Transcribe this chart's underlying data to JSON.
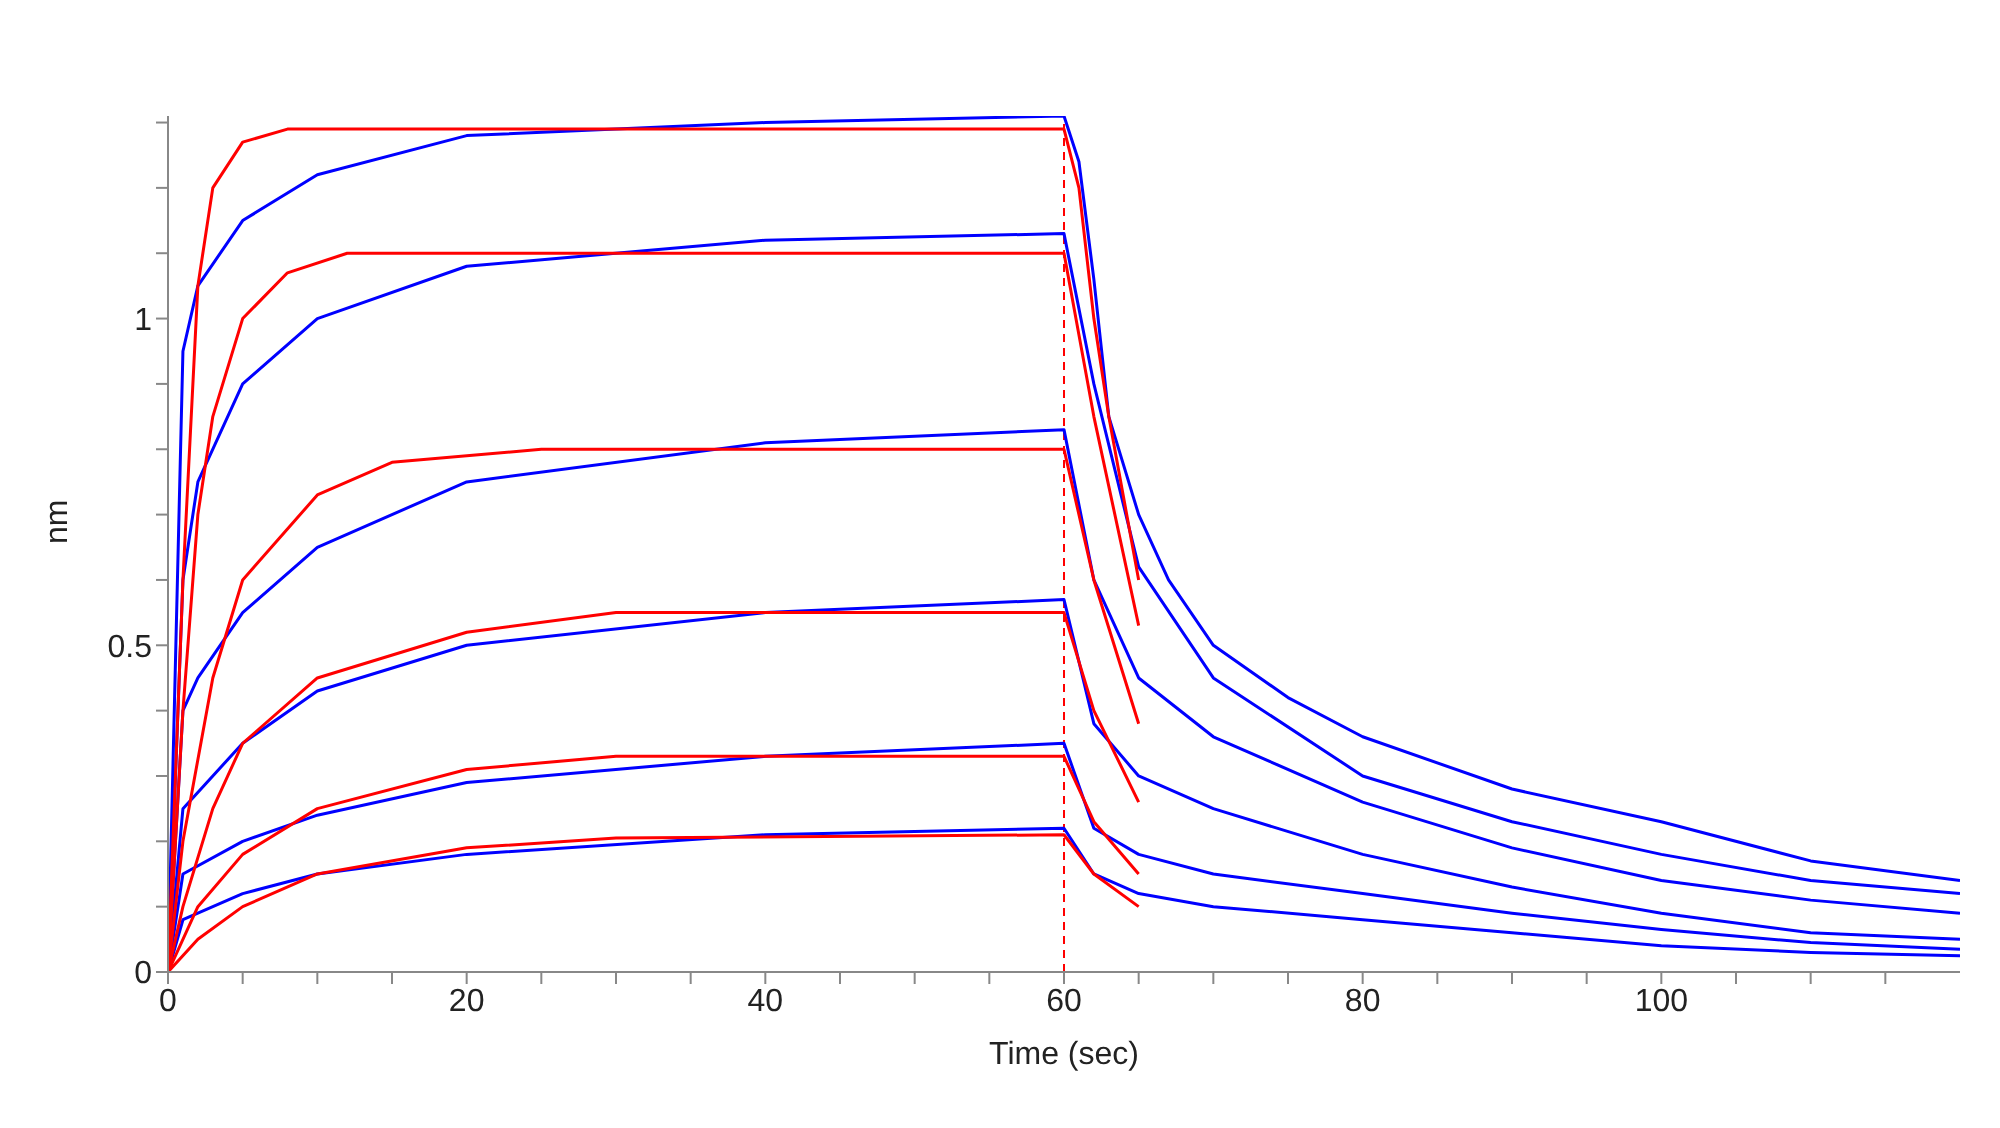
{
  "chart_data": {
    "type": "line",
    "xlabel": "Time (sec)",
    "ylabel": "nm",
    "xlim": [
      0,
      120
    ],
    "ylim": [
      0,
      1.31
    ],
    "xticks": [
      0,
      {
        "value": 5,
        "label": null
      },
      {
        "value": 10,
        "label": null
      },
      {
        "value": 15,
        "label": null
      },
      20,
      {
        "value": 25,
        "label": null
      },
      {
        "value": 30,
        "label": null
      },
      {
        "value": 35,
        "label": null
      },
      40,
      {
        "value": 45,
        "label": null
      },
      {
        "value": 50,
        "label": null
      },
      {
        "value": 55,
        "label": null
      },
      60,
      {
        "value": 65,
        "label": null
      },
      {
        "value": 70,
        "label": null
      },
      {
        "value": 75,
        "label": null
      },
      80,
      {
        "value": 85,
        "label": null
      },
      {
        "value": 90,
        "label": null
      },
      {
        "value": 95,
        "label": null
      },
      100,
      {
        "value": 105,
        "label": null
      },
      {
        "value": 110,
        "label": null
      },
      {
        "value": 115,
        "label": null
      }
    ],
    "yticks": [
      0,
      {
        "value": 0.1,
        "label": null
      },
      {
        "value": 0.2,
        "label": null
      },
      {
        "value": 0.3,
        "label": null
      },
      {
        "value": 0.4,
        "label": null
      },
      0.5,
      {
        "value": 0.6,
        "label": null
      },
      {
        "value": 0.7,
        "label": null
      },
      {
        "value": 0.8,
        "label": null
      },
      {
        "value": 0.9,
        "label": null
      },
      1,
      {
        "value": 1.1,
        "label": null
      },
      {
        "value": 1.2,
        "label": null
      },
      {
        "value": 1.3,
        "label": null
      }
    ],
    "grid": false,
    "legend": false,
    "marker": "none",
    "line_style": "solid",
    "ref_lines": [
      {
        "axis": "x",
        "value": 60,
        "color": "#ff0000",
        "line_style": "dashed"
      }
    ],
    "series": [
      {
        "color": "#0000ff",
        "x": [
          0,
          1,
          2,
          5,
          10,
          20,
          40,
          60,
          61,
          62,
          63,
          65,
          67,
          70,
          75,
          80,
          90,
          100,
          110,
          120
        ],
        "values": [
          0,
          0.95,
          1.05,
          1.15,
          1.22,
          1.28,
          1.3,
          1.31,
          1.24,
          1.06,
          0.85,
          0.7,
          0.6,
          0.5,
          0.42,
          0.36,
          0.28,
          0.23,
          0.17,
          0.14
        ]
      },
      {
        "color": "#0000ff",
        "x": [
          0,
          1,
          2,
          5,
          10,
          20,
          40,
          60,
          62,
          65,
          70,
          80,
          90,
          100,
          110,
          120
        ],
        "values": [
          0,
          0.6,
          0.75,
          0.9,
          1.0,
          1.08,
          1.12,
          1.13,
          0.9,
          0.62,
          0.45,
          0.3,
          0.23,
          0.18,
          0.14,
          0.12
        ]
      },
      {
        "color": "#0000ff",
        "x": [
          0,
          1,
          2,
          5,
          10,
          20,
          40,
          60,
          62,
          65,
          70,
          80,
          90,
          100,
          110,
          120
        ],
        "values": [
          0,
          0.4,
          0.45,
          0.55,
          0.65,
          0.75,
          0.81,
          0.83,
          0.6,
          0.45,
          0.36,
          0.26,
          0.19,
          0.14,
          0.11,
          0.09
        ]
      },
      {
        "color": "#0000ff",
        "x": [
          0,
          1,
          3,
          5,
          10,
          20,
          40,
          60,
          62,
          65,
          70,
          80,
          90,
          100,
          110,
          120
        ],
        "values": [
          0,
          0.25,
          0.3,
          0.35,
          0.43,
          0.5,
          0.55,
          0.57,
          0.38,
          0.3,
          0.25,
          0.18,
          0.13,
          0.09,
          0.06,
          0.05
        ]
      },
      {
        "color": "#0000ff",
        "x": [
          0,
          1,
          5,
          10,
          20,
          40,
          60,
          62,
          65,
          70,
          80,
          90,
          100,
          110,
          120
        ],
        "values": [
          0,
          0.15,
          0.2,
          0.24,
          0.29,
          0.33,
          0.35,
          0.22,
          0.18,
          0.15,
          0.12,
          0.09,
          0.065,
          0.045,
          0.035
        ]
      },
      {
        "color": "#0000ff",
        "x": [
          0,
          1,
          5,
          10,
          20,
          40,
          60,
          62,
          65,
          70,
          80,
          90,
          100,
          110,
          120
        ],
        "values": [
          0,
          0.08,
          0.12,
          0.15,
          0.18,
          0.21,
          0.22,
          0.15,
          0.12,
          0.1,
          0.08,
          0.06,
          0.04,
          0.03,
          0.025
        ]
      },
      {
        "color": "#ff0000",
        "x": [
          0,
          1,
          2,
          3,
          5,
          8,
          60,
          61,
          62,
          63,
          65
        ],
        "values": [
          0,
          0.6,
          1.05,
          1.2,
          1.27,
          1.29,
          1.29,
          1.2,
          1.0,
          0.85,
          0.6
        ]
      },
      {
        "color": "#ff0000",
        "x": [
          0,
          1,
          2,
          3,
          5,
          8,
          12,
          60,
          62,
          65
        ],
        "values": [
          0,
          0.4,
          0.7,
          0.85,
          1.0,
          1.07,
          1.1,
          1.1,
          0.85,
          0.53
        ]
      },
      {
        "color": "#ff0000",
        "x": [
          0,
          1,
          3,
          5,
          10,
          15,
          25,
          60,
          62,
          65
        ],
        "values": [
          0,
          0.2,
          0.45,
          0.6,
          0.73,
          0.78,
          0.8,
          0.8,
          0.6,
          0.38
        ]
      },
      {
        "color": "#ff0000",
        "x": [
          0,
          1,
          3,
          5,
          10,
          20,
          30,
          60,
          62,
          65
        ],
        "values": [
          0,
          0.1,
          0.25,
          0.35,
          0.45,
          0.52,
          0.55,
          0.55,
          0.4,
          0.26
        ]
      },
      {
        "color": "#ff0000",
        "x": [
          0,
          2,
          5,
          10,
          20,
          30,
          60,
          62,
          65
        ],
        "values": [
          0,
          0.1,
          0.18,
          0.25,
          0.31,
          0.33,
          0.33,
          0.23,
          0.15
        ]
      },
      {
        "color": "#ff0000",
        "x": [
          0,
          2,
          5,
          10,
          20,
          30,
          60,
          62,
          65
        ],
        "values": [
          0,
          0.05,
          0.1,
          0.15,
          0.19,
          0.205,
          0.21,
          0.15,
          0.1
        ]
      }
    ]
  }
}
